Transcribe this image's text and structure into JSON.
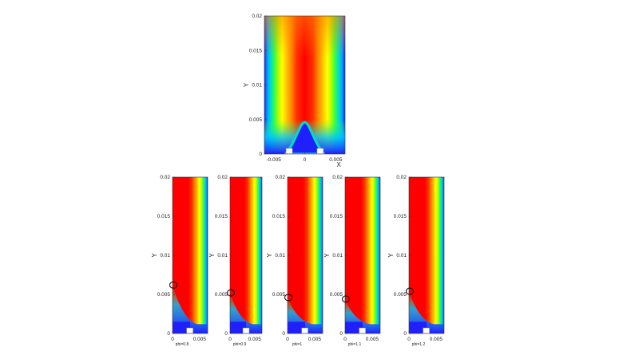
{
  "chart_data": [
    {
      "type": "heatmap",
      "xlabel": "X",
      "ylabel": "Y",
      "x_ticks": [
        "-0.005",
        "0",
        "0.005"
      ],
      "y_ticks": [
        "0",
        "0.005",
        "0.01",
        "0.015",
        "0.02"
      ],
      "xlim": [
        -0.0065,
        0.0065
      ],
      "ylim": [
        0,
        0.02
      ],
      "colormap": [
        "#2020ff",
        "#00aaff",
        "#00e0c0",
        "#40ff40",
        "#c0ff00",
        "#ffff00",
        "#ffc000",
        "#ff8000",
        "#ff3000",
        "#ff0000"
      ],
      "inlets": [
        "left",
        "right"
      ]
    },
    {
      "type": "heatmap",
      "ylabel": "Y",
      "subtitle": "phi=0.8",
      "x_ticks": [
        "0",
        "0.005"
      ],
      "y_ticks": [
        "0",
        "0.005",
        "0.01",
        "0.015",
        "0.02"
      ],
      "xlim": [
        0,
        0.0065
      ],
      "ylim": [
        0,
        0.02
      ],
      "marker_y": 0.0062
    },
    {
      "type": "heatmap",
      "ylabel": "Y",
      "subtitle": "phi=0.9",
      "x_ticks": [
        "0",
        "0.005"
      ],
      "y_ticks": [
        "0",
        "0.005",
        "0.01",
        "0.015",
        "0.02"
      ],
      "xlim": [
        0,
        0.0065
      ],
      "ylim": [
        0,
        0.02
      ],
      "marker_y": 0.0052
    },
    {
      "type": "heatmap",
      "ylabel": "Y",
      "subtitle": "phi=1",
      "x_ticks": [
        "0",
        "0.005"
      ],
      "y_ticks": [
        "0",
        "0.005",
        "0.01",
        "0.015",
        "0.02"
      ],
      "xlim": [
        0,
        0.0065
      ],
      "ylim": [
        0,
        0.02
      ],
      "marker_y": 0.0046
    },
    {
      "type": "heatmap",
      "ylabel": "Y",
      "subtitle": "phi=1.1",
      "x_ticks": [
        "0",
        "0.005"
      ],
      "y_ticks": [
        "0",
        "0.005",
        "0.01",
        "0.015",
        "0.02"
      ],
      "xlim": [
        0,
        0.0065
      ],
      "ylim": [
        0,
        0.02
      ],
      "marker_y": 0.0044
    },
    {
      "type": "heatmap",
      "ylabel": "Y",
      "subtitle": "phi=1.2",
      "x_ticks": [
        "0",
        "0.005"
      ],
      "y_ticks": [
        "0",
        "0.005",
        "0.01",
        "0.015",
        "0.02"
      ],
      "xlim": [
        0,
        0.0065
      ],
      "ylim": [
        0,
        0.02
      ],
      "marker_y": 0.0054
    }
  ]
}
